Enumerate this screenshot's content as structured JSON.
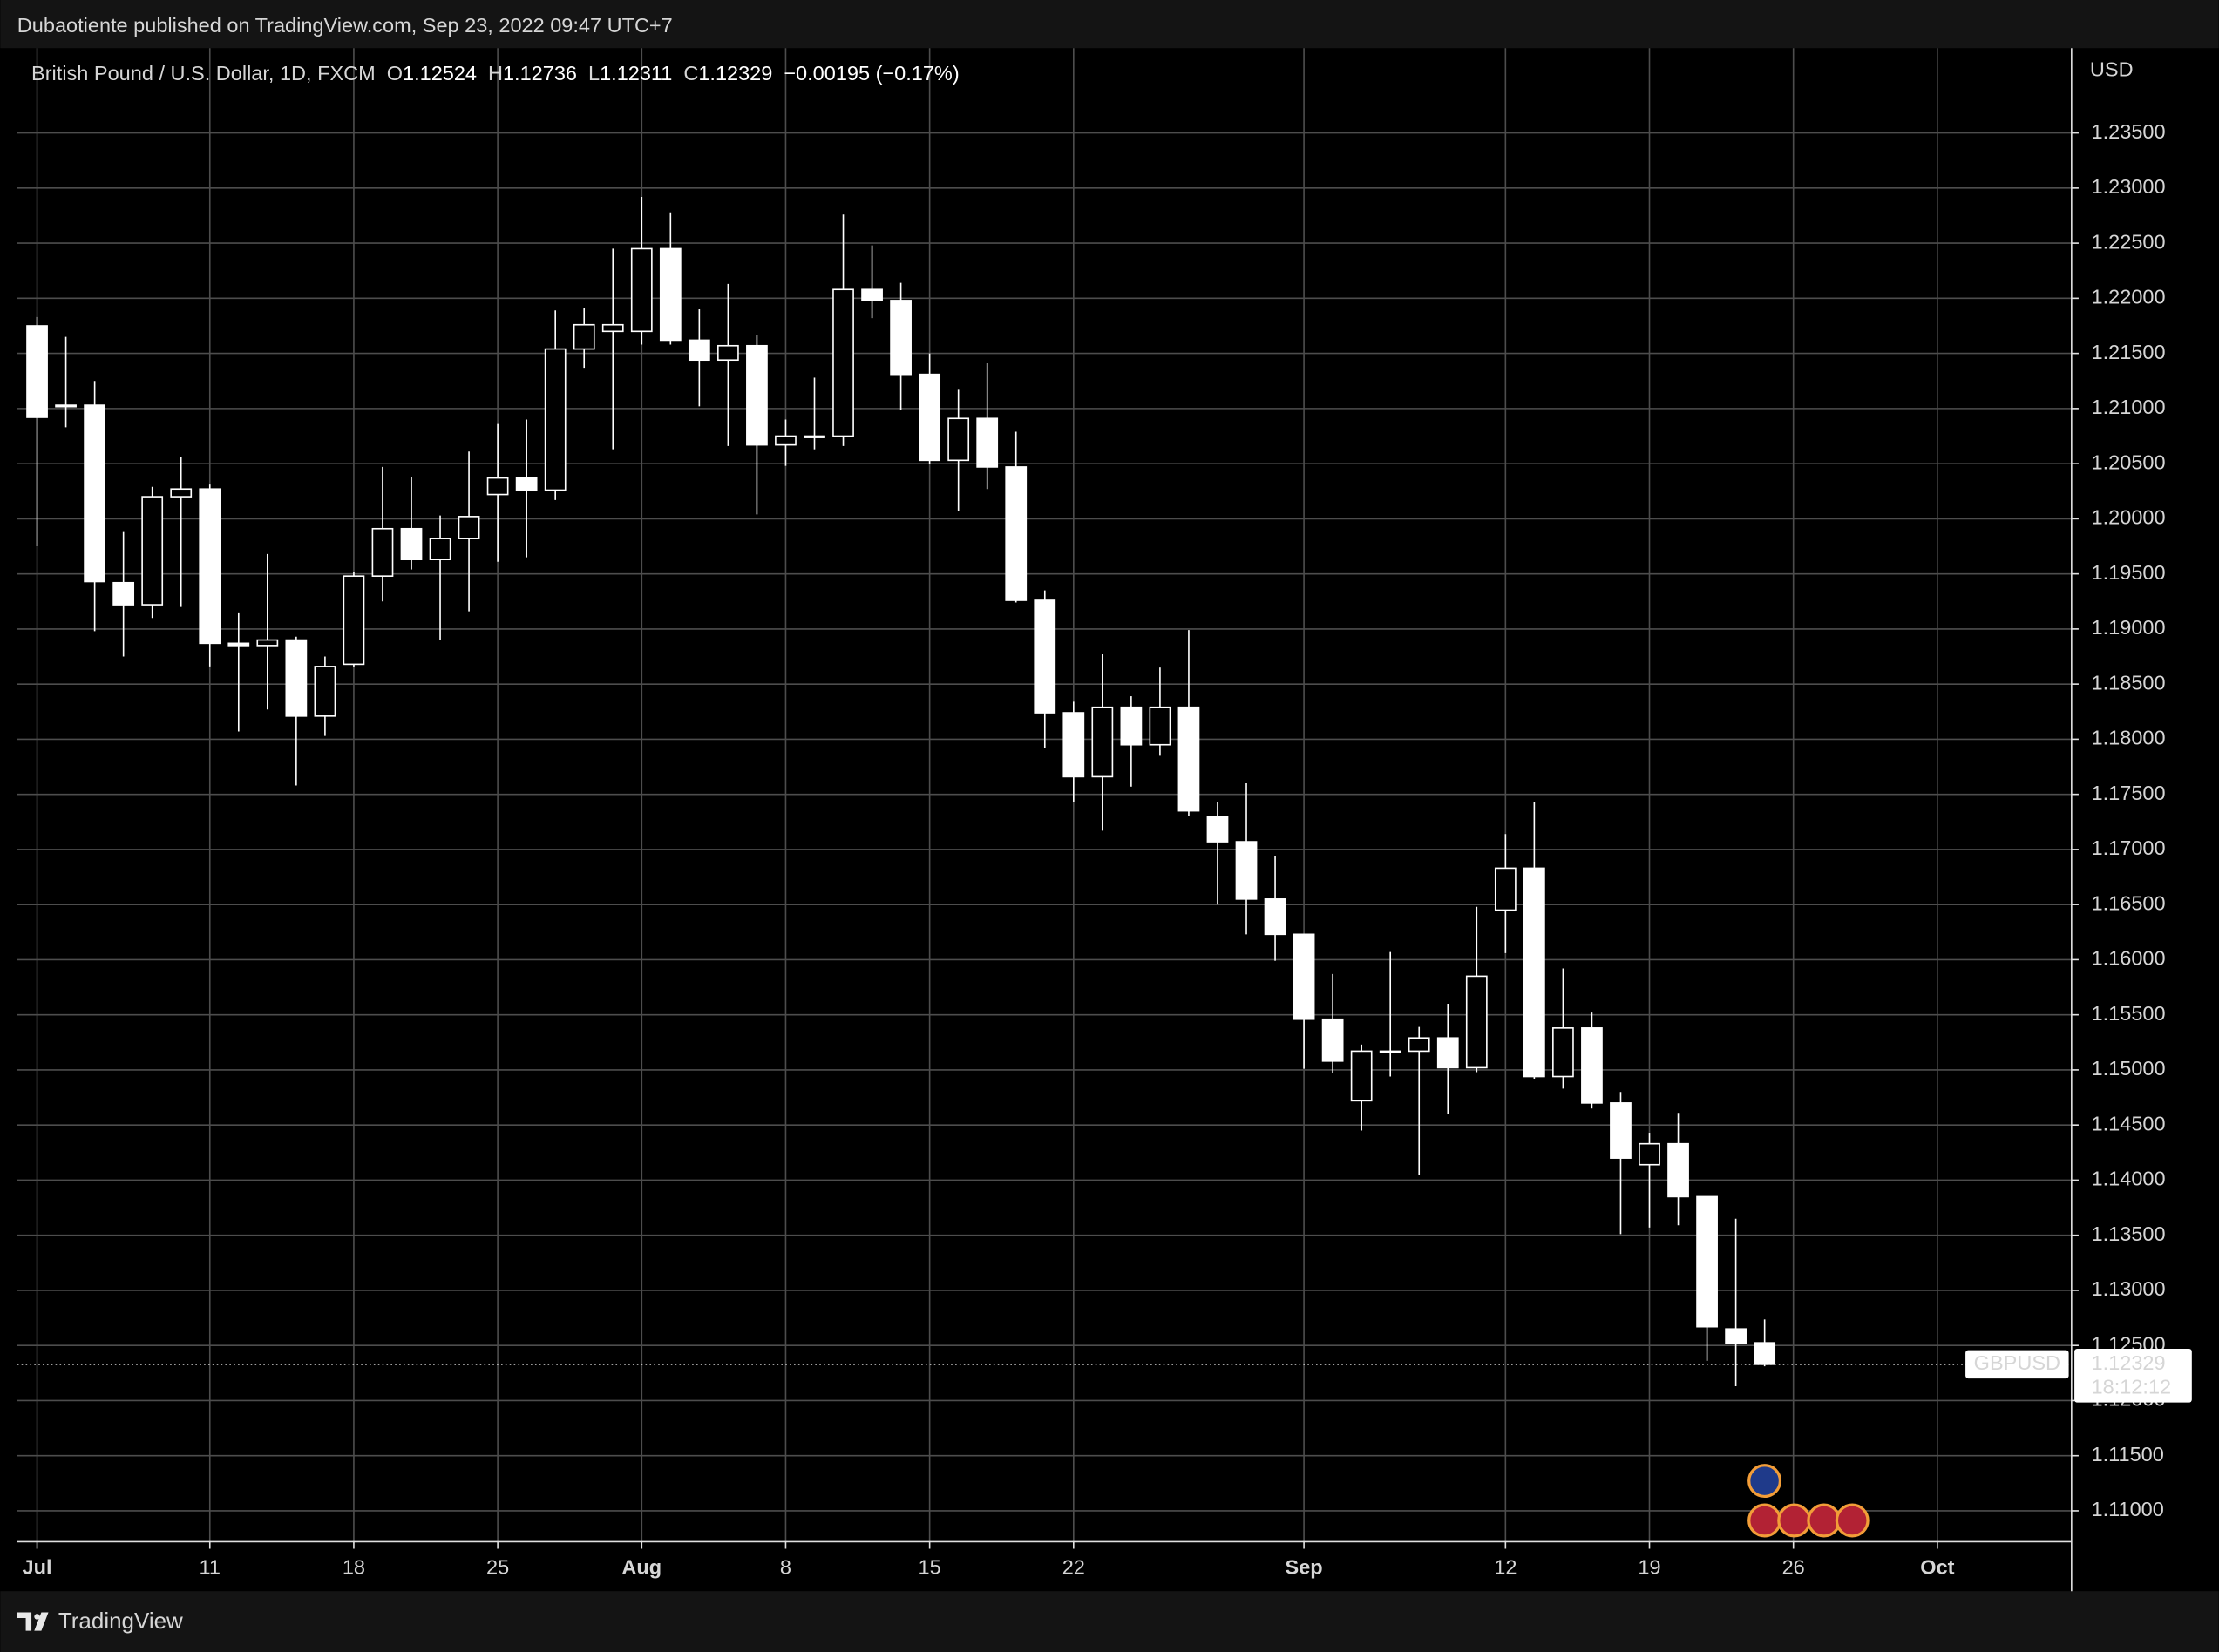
{
  "header": {
    "publisher": "Dubaotiente published on TradingView.com, Sep 23, 2022 09:47 UTC+7"
  },
  "footer": {
    "brand": "TradingView"
  },
  "chart_data": {
    "type": "candlestick",
    "title": "British Pound / U.S. Dollar, 1D, FXCM",
    "ohlc_labels": [
      "O",
      "H",
      "L",
      "C"
    ],
    "change": "−0.00195 (−0.17%)",
    "currency": "USD",
    "symbol": "GBPUSD",
    "countdown": "18:12:12",
    "x": [
      "2022-07-01",
      "2022-07-04",
      "2022-07-05",
      "2022-07-06",
      "2022-07-07",
      "2022-07-08",
      "2022-07-11",
      "2022-07-12",
      "2022-07-13",
      "2022-07-14",
      "2022-07-15",
      "2022-07-18",
      "2022-07-19",
      "2022-07-20",
      "2022-07-21",
      "2022-07-22",
      "2022-07-25",
      "2022-07-26",
      "2022-07-27",
      "2022-07-28",
      "2022-07-29",
      "2022-08-01",
      "2022-08-02",
      "2022-08-03",
      "2022-08-04",
      "2022-08-05",
      "2022-08-08",
      "2022-08-09",
      "2022-08-10",
      "2022-08-11",
      "2022-08-12",
      "2022-08-15",
      "2022-08-16",
      "2022-08-17",
      "2022-08-18",
      "2022-08-19",
      "2022-08-22",
      "2022-08-23",
      "2022-08-24",
      "2022-08-25",
      "2022-08-26",
      "2022-08-29",
      "2022-08-30",
      "2022-08-31",
      "2022-09-01",
      "2022-09-02",
      "2022-09-05",
      "2022-09-06",
      "2022-09-07",
      "2022-09-08",
      "2022-09-09",
      "2022-09-12",
      "2022-09-13",
      "2022-09-14",
      "2022-09-15",
      "2022-09-16",
      "2022-09-19",
      "2022-09-20",
      "2022-09-21",
      "2022-09-22",
      "2022-09-23"
    ],
    "open": [
      1.2175,
      1.2103,
      1.2103,
      1.1942,
      1.1922,
      1.202,
      1.2027,
      1.1887,
      1.1885,
      1.189,
      1.1821,
      1.1868,
      1.1948,
      1.1991,
      1.1963,
      1.1982,
      1.2022,
      1.2037,
      1.2026,
      1.2154,
      1.217,
      1.217,
      1.2245,
      1.2162,
      1.2144,
      1.2157,
      1.2067,
      1.2075,
      1.2075,
      1.2208,
      1.2198,
      1.2131,
      1.2053,
      1.2091,
      1.2047,
      1.1926,
      1.1824,
      1.1766,
      1.1829,
      1.1795,
      1.1829,
      1.173,
      1.1707,
      1.1655,
      1.1623,
      1.1546,
      1.1472,
      1.1517,
      1.1517,
      1.1529,
      1.1502,
      1.1645,
      1.1683,
      1.1494,
      1.1538,
      1.147,
      1.1414,
      1.1433,
      1.1385,
      1.1265,
      1.12524
    ],
    "high": [
      1.2183,
      1.2165,
      1.2125,
      1.1988,
      1.2029,
      1.2056,
      1.2031,
      1.1915,
      1.1968,
      1.1893,
      1.1875,
      1.1952,
      1.2047,
      1.2038,
      1.2003,
      1.2061,
      1.2086,
      1.209,
      1.2189,
      1.2191,
      1.2245,
      1.2292,
      1.2278,
      1.219,
      1.2213,
      1.2167,
      1.209,
      1.2128,
      1.2276,
      1.2248,
      1.2214,
      1.215,
      1.2117,
      1.2141,
      1.2079,
      1.1935,
      1.1834,
      1.1877,
      1.1839,
      1.1865,
      1.1899,
      1.1743,
      1.176,
      1.1694,
      1.1623,
      1.1587,
      1.1523,
      1.1607,
      1.1539,
      1.156,
      1.1648,
      1.1714,
      1.1743,
      1.1592,
      1.1552,
      1.148,
      1.1443,
      1.1461,
      1.1385,
      1.1365,
      1.12736
    ],
    "low": [
      1.1975,
      1.2083,
      1.1898,
      1.1875,
      1.191,
      1.192,
      1.1866,
      1.1807,
      1.1827,
      1.1758,
      1.1803,
      1.1866,
      1.1925,
      1.1954,
      1.189,
      1.1916,
      1.1961,
      1.1965,
      1.2017,
      1.2137,
      1.2063,
      1.2158,
      1.2158,
      1.2102,
      1.2066,
      1.2004,
      1.2048,
      1.2063,
      1.2066,
      1.2182,
      1.2099,
      1.205,
      1.2007,
      1.2027,
      1.1924,
      1.1792,
      1.1743,
      1.1717,
      1.1757,
      1.1785,
      1.173,
      1.165,
      1.1623,
      1.1599,
      1.1501,
      1.1497,
      1.1445,
      1.1494,
      1.1405,
      1.146,
      1.1498,
      1.1606,
      1.1492,
      1.1483,
      1.1465,
      1.1351,
      1.1357,
      1.1359,
      1.1236,
      1.1213,
      1.12311
    ],
    "close": [
      1.2092,
      1.2102,
      1.1943,
      1.1922,
      1.202,
      1.2027,
      1.1887,
      1.1885,
      1.189,
      1.1821,
      1.1866,
      1.1948,
      1.1991,
      1.1963,
      1.1982,
      1.2002,
      1.2037,
      1.2026,
      1.2154,
      1.2176,
      1.2176,
      1.2245,
      1.2162,
      1.2144,
      1.2157,
      1.2067,
      1.2075,
      1.2074,
      1.2208,
      1.2198,
      1.2131,
      1.2053,
      1.2091,
      1.2047,
      1.1926,
      1.1824,
      1.1766,
      1.1829,
      1.1795,
      1.1829,
      1.1735,
      1.1707,
      1.1655,
      1.1623,
      1.1546,
      1.1508,
      1.1517,
      1.1516,
      1.1529,
      1.1502,
      1.1585,
      1.1683,
      1.1494,
      1.1538,
      1.147,
      1.142,
      1.1433,
      1.1385,
      1.1267,
      1.1252,
      1.12329
    ],
    "color": "#ffffff",
    "background": "#000000",
    "grid": true,
    "grid_color": "#4d4d4d",
    "last_price_line": true,
    "ylim": [
      1.1072,
      1.2427
    ],
    "yticks": [
      {
        "value": 1.11,
        "label": "1.11000"
      },
      {
        "value": 1.115,
        "label": "1.11500"
      },
      {
        "value": 1.12,
        "label": "1.12000"
      },
      {
        "value": 1.125,
        "label": "1.12500"
      },
      {
        "value": 1.13,
        "label": "1.13000"
      },
      {
        "value": 1.135,
        "label": "1.13500"
      },
      {
        "value": 1.14,
        "label": "1.14000"
      },
      {
        "value": 1.145,
        "label": "1.14500"
      },
      {
        "value": 1.15,
        "label": "1.15000"
      },
      {
        "value": 1.155,
        "label": "1.15500"
      },
      {
        "value": 1.16,
        "label": "1.16000"
      },
      {
        "value": 1.165,
        "label": "1.16500"
      },
      {
        "value": 1.17,
        "label": "1.17000"
      },
      {
        "value": 1.175,
        "label": "1.17500"
      },
      {
        "value": 1.18,
        "label": "1.18000"
      },
      {
        "value": 1.185,
        "label": "1.18500"
      },
      {
        "value": 1.19,
        "label": "1.19000"
      },
      {
        "value": 1.195,
        "label": "1.19500"
      },
      {
        "value": 1.2,
        "label": "1.20000"
      },
      {
        "value": 1.205,
        "label": "1.20500"
      },
      {
        "value": 1.21,
        "label": "1.21000"
      },
      {
        "value": 1.215,
        "label": "1.21500"
      },
      {
        "value": 1.22,
        "label": "1.22000"
      },
      {
        "value": 1.225,
        "label": "1.22500"
      },
      {
        "value": 1.23,
        "label": "1.23000"
      },
      {
        "value": 1.235,
        "label": "1.23500"
      }
    ],
    "xlim": [
      "2022-06-30",
      "2022-10-10"
    ],
    "xticks": [
      {
        "value": "2022-07-01",
        "label": "Jul"
      },
      {
        "value": "2022-07-11",
        "label": "11"
      },
      {
        "value": "2022-07-18",
        "label": "18"
      },
      {
        "value": "2022-07-25",
        "label": "25"
      },
      {
        "value": "2022-08-01",
        "label": "Aug"
      },
      {
        "value": "2022-08-08",
        "label": "8"
      },
      {
        "value": "2022-08-15",
        "label": "15"
      },
      {
        "value": "2022-08-22",
        "label": "22"
      },
      {
        "value": "2022-09-01",
        "label": "Sep"
      },
      {
        "value": "2022-09-12",
        "label": "12"
      },
      {
        "value": "2022-09-19",
        "label": "19"
      },
      {
        "value": "2022-09-26",
        "label": "26"
      },
      {
        "value": "2022-10-03",
        "label": "Oct"
      }
    ]
  }
}
